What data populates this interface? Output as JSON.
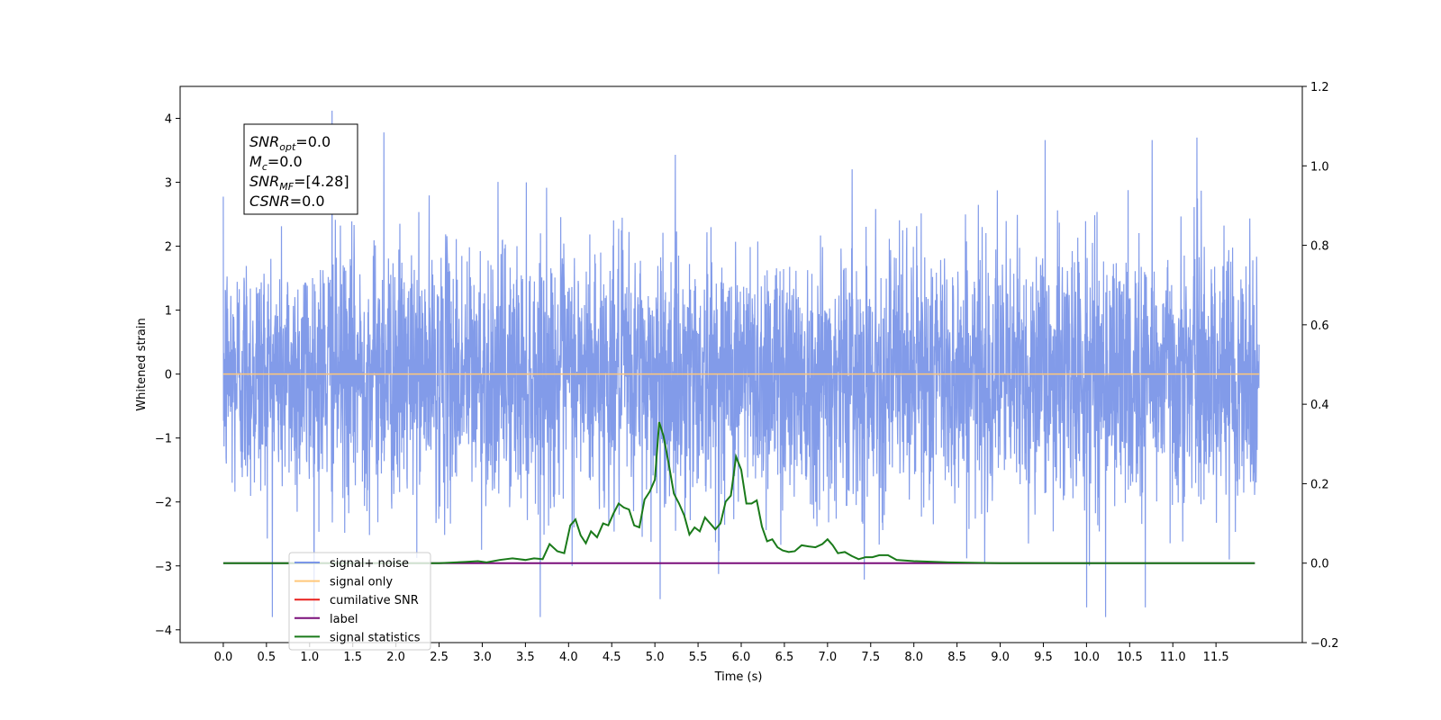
{
  "chart_data": {
    "type": "line",
    "xlabel": "Time (s)",
    "ylabel": "Whitened strain",
    "xlim": [
      -0.5,
      12.5
    ],
    "ylim": [
      -4.2,
      4.5
    ],
    "y2lim": [
      -0.2,
      1.2
    ],
    "x_ticks": [
      0.0,
      0.5,
      1.0,
      1.5,
      2.0,
      2.5,
      3.0,
      3.5,
      4.0,
      4.5,
      5.0,
      5.5,
      6.0,
      6.5,
      7.0,
      7.5,
      8.0,
      8.5,
      9.0,
      9.5,
      10.0,
      10.5,
      11.0,
      11.5
    ],
    "x_tick_labels": [
      "0.0",
      "0.5",
      "1.0",
      "1.5",
      "2.0",
      "2.5",
      "3.0",
      "3.5",
      "4.0",
      "4.5",
      "5.0",
      "5.5",
      "6.0",
      "6.5",
      "7.0",
      "7.5",
      "8.0",
      "8.5",
      "9.0",
      "9.5",
      "10.0",
      "10.5",
      "11.0",
      "11.5"
    ],
    "y_ticks": [
      -4,
      -3,
      -2,
      -1,
      0,
      1,
      2,
      3,
      4
    ],
    "y_tick_labels": [
      "−4",
      "−3",
      "−2",
      "−1",
      "0",
      "1",
      "2",
      "3",
      "4"
    ],
    "y2_ticks": [
      -0.2,
      0.0,
      0.2,
      0.4,
      0.6,
      0.8,
      1.0,
      1.2
    ],
    "y2_tick_labels": [
      "−0.2",
      "0.0",
      "0.2",
      "0.4",
      "0.6",
      "0.8",
      "1.0",
      "1.2"
    ],
    "legend": {
      "placement": "lower-left",
      "entries": [
        {
          "label": "signal+ noise",
          "color": "#7b96e8"
        },
        {
          "label": "signal only",
          "color": "#ffc77a"
        },
        {
          "label": "cumilative SNR",
          "color": "#e8201e"
        },
        {
          "label": "label",
          "color": "#7a0f7a"
        },
        {
          "label": "signal statistics",
          "color": "#1a7a1a"
        }
      ]
    },
    "info_box": {
      "lines": [
        {
          "sym": "SNR",
          "sub": "opt",
          "rest": "=0.0"
        },
        {
          "sym": "M",
          "sub": "c",
          "rest": "=0.0"
        },
        {
          "sym": "SNR",
          "sub": "MF",
          "rest": "=[4.28]"
        },
        {
          "sym": "CSNR",
          "sub": "",
          "rest": "=0.0"
        }
      ]
    },
    "series": [
      {
        "name": "signal+ noise",
        "axis": "left",
        "color": "#7b96e8",
        "x_range": [
          0.0,
          12.0
        ],
        "y_range": [
          -3.8,
          4.12
        ],
        "points": 4096,
        "notable_peaks": [
          {
            "x": 1.26,
            "y": 4.12
          },
          {
            "x": 1.86,
            "y": 3.78
          },
          {
            "x": 11.28,
            "y": 3.7
          },
          {
            "x": 9.52,
            "y": 3.66
          },
          {
            "x": 10.76,
            "y": 3.66
          },
          {
            "x": 10.22,
            "y": -3.8
          },
          {
            "x": 10.0,
            "y": -3.65
          },
          {
            "x": 10.68,
            "y": -3.65
          },
          {
            "x": 5.06,
            "y": -3.52
          }
        ]
      },
      {
        "name": "signal only",
        "axis": "left",
        "color": "#ffc77a",
        "x": [
          0.0,
          12.0
        ],
        "y": [
          0.0,
          0.0
        ]
      },
      {
        "name": "label",
        "axis": "right",
        "color": "#7a0f7a",
        "x": [
          0.0,
          11.95
        ],
        "y": [
          0.0,
          0.0
        ]
      },
      {
        "name": "signal statistics",
        "axis": "right",
        "color": "#1a7a1a",
        "x": [
          0.0,
          2.5,
          2.8,
          2.95,
          3.05,
          3.2,
          3.35,
          3.5,
          3.6,
          3.7,
          3.78,
          3.87,
          3.95,
          4.02,
          4.08,
          4.14,
          4.2,
          4.26,
          4.33,
          4.4,
          4.46,
          4.52,
          4.58,
          4.64,
          4.7,
          4.76,
          4.82,
          4.88,
          4.94,
          5.0,
          5.05,
          5.1,
          5.16,
          5.22,
          5.28,
          5.34,
          5.4,
          5.46,
          5.52,
          5.58,
          5.64,
          5.7,
          5.76,
          5.82,
          5.88,
          5.94,
          6.0,
          6.06,
          6.12,
          6.18,
          6.24,
          6.3,
          6.36,
          6.42,
          6.48,
          6.55,
          6.62,
          6.7,
          6.78,
          6.86,
          6.94,
          7.0,
          7.06,
          7.12,
          7.2,
          7.28,
          7.36,
          7.44,
          7.52,
          7.6,
          7.7,
          7.8,
          8.0,
          8.4,
          9.0,
          11.95
        ],
        "y": [
          0.0,
          0.0,
          0.003,
          0.005,
          0.002,
          0.008,
          0.012,
          0.008,
          0.012,
          0.01,
          0.048,
          0.03,
          0.025,
          0.095,
          0.11,
          0.07,
          0.05,
          0.08,
          0.065,
          0.1,
          0.095,
          0.125,
          0.15,
          0.14,
          0.135,
          0.095,
          0.09,
          0.16,
          0.18,
          0.21,
          0.355,
          0.32,
          0.25,
          0.175,
          0.15,
          0.12,
          0.072,
          0.09,
          0.08,
          0.115,
          0.1,
          0.085,
          0.1,
          0.155,
          0.17,
          0.268,
          0.235,
          0.15,
          0.15,
          0.158,
          0.092,
          0.055,
          0.06,
          0.04,
          0.032,
          0.028,
          0.03,
          0.045,
          0.042,
          0.04,
          0.048,
          0.06,
          0.045,
          0.025,
          0.028,
          0.018,
          0.01,
          0.015,
          0.015,
          0.02,
          0.02,
          0.008,
          0.005,
          0.002,
          0.0,
          0.0
        ]
      }
    ]
  }
}
